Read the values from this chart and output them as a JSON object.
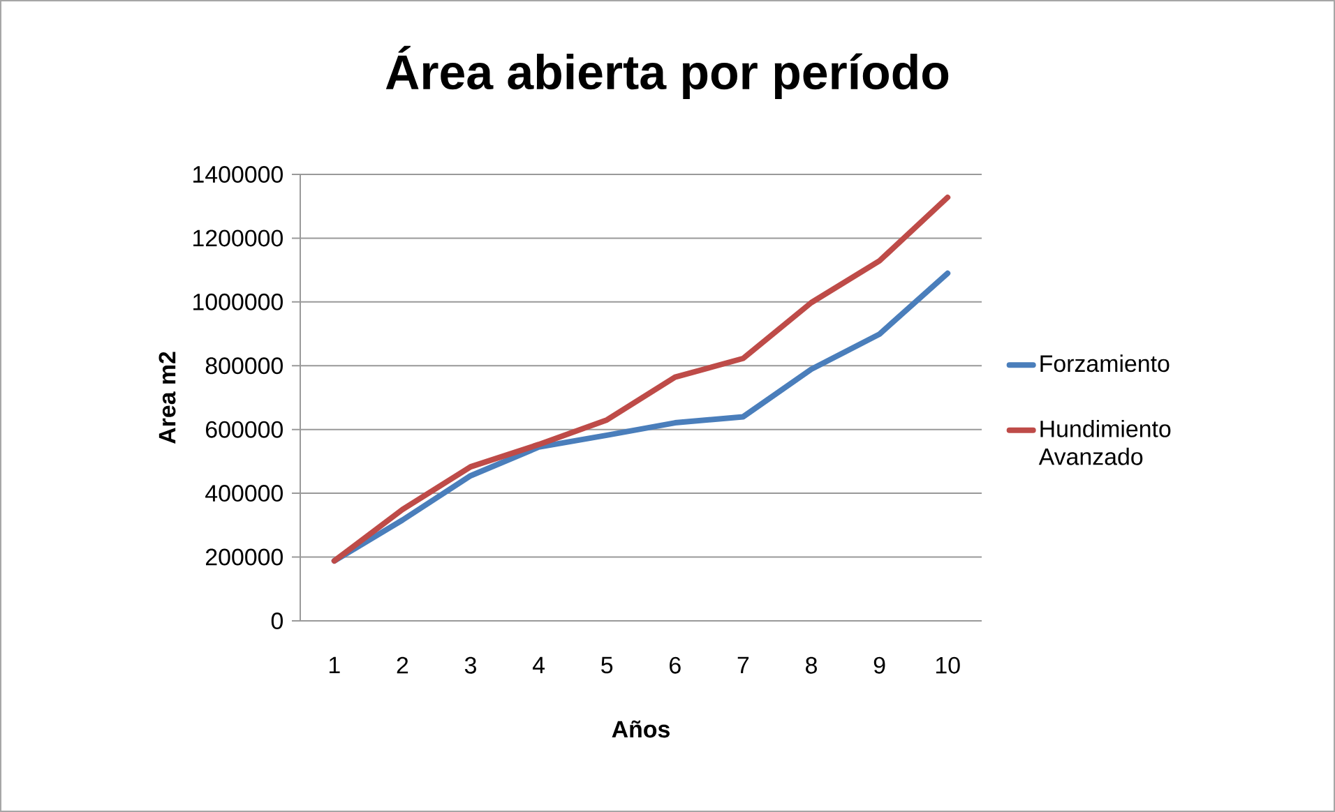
{
  "chart_data": {
    "type": "line",
    "title": "Área abierta por período",
    "xlabel": "Años",
    "ylabel": "Area m2",
    "categories": [
      "1",
      "2",
      "3",
      "4",
      "5",
      "6",
      "7",
      "8",
      "9",
      "10"
    ],
    "series": [
      {
        "name": "Forzamiento",
        "color": "#4a7ebb",
        "values": [
          188000,
          316000,
          455000,
          545000,
          582000,
          621000,
          640000,
          789000,
          899000,
          1090000
        ]
      },
      {
        "name": "Hundimiento Avanzado",
        "color": "#be4b48",
        "values": [
          188000,
          349000,
          483000,
          553000,
          630000,
          764000,
          823000,
          998000,
          1129000,
          1328000
        ]
      }
    ],
    "ylim": [
      0,
      1400000
    ],
    "yticks": [
      0,
      200000,
      400000,
      600000,
      800000,
      1000000,
      1200000,
      1400000
    ],
    "grid": "y",
    "legend": "right",
    "marker": "none",
    "line_style": "solid"
  }
}
